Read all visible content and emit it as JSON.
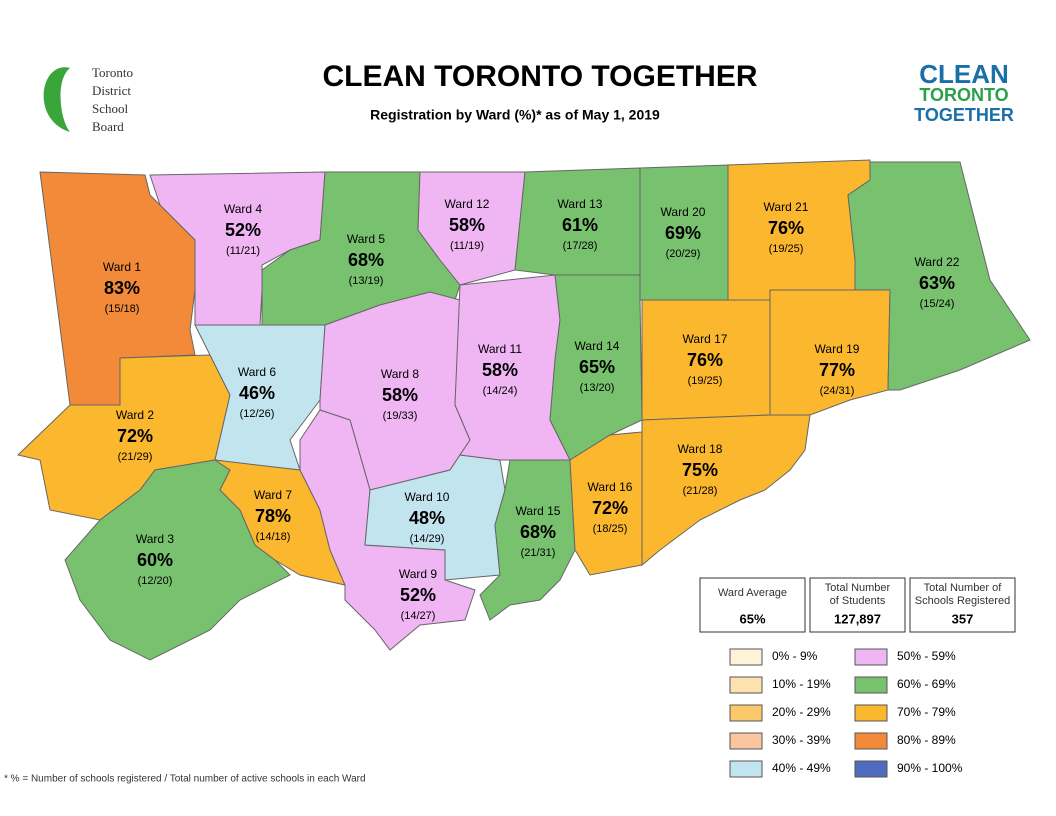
{
  "header": {
    "title": "CLEAN TORONTO TOGETHER",
    "subtitle": "Registration by Ward (%)* as of May 1, 2019",
    "logo_left": [
      "Toronto",
      "District",
      "School",
      "Board"
    ],
    "logo_right": [
      "CLEAN",
      "TORONTO",
      "TOGETHER"
    ]
  },
  "wards": [
    {
      "name": "Ward 1",
      "percent": "83%",
      "fraction": "(15/18)",
      "color": "#f28a3a"
    },
    {
      "name": "Ward 2",
      "percent": "72%",
      "fraction": "(21/29)",
      "color": "#fbb72e"
    },
    {
      "name": "Ward 3",
      "percent": "60%",
      "fraction": "(12/20)",
      "color": "#78c26f"
    },
    {
      "name": "Ward 4",
      "percent": "52%",
      "fraction": "(11/21)",
      "color": "#f0b6f4"
    },
    {
      "name": "Ward 5",
      "percent": "68%",
      "fraction": "(13/19)",
      "color": "#78c26f"
    },
    {
      "name": "Ward 6",
      "percent": "46%",
      "fraction": "(12/26)",
      "color": "#c2e4ef"
    },
    {
      "name": "Ward 7",
      "percent": "78%",
      "fraction": "(14/18)",
      "color": "#fbb72e"
    },
    {
      "name": "Ward 8",
      "percent": "58%",
      "fraction": "(19/33)",
      "color": "#f0b6f4"
    },
    {
      "name": "Ward 9",
      "percent": "52%",
      "fraction": "(14/27)",
      "color": "#f0b6f4"
    },
    {
      "name": "Ward 10",
      "percent": "48%",
      "fraction": "(14/29)",
      "color": "#c2e4ef"
    },
    {
      "name": "Ward 11",
      "percent": "58%",
      "fraction": "(14/24)",
      "color": "#f0b6f4"
    },
    {
      "name": "Ward 12",
      "percent": "58%",
      "fraction": "(11/19)",
      "color": "#f0b6f4"
    },
    {
      "name": "Ward 13",
      "percent": "61%",
      "fraction": "(17/28)",
      "color": "#78c26f"
    },
    {
      "name": "Ward 14",
      "percent": "65%",
      "fraction": "(13/20)",
      "color": "#78c26f"
    },
    {
      "name": "Ward 15",
      "percent": "68%",
      "fraction": "(21/31)",
      "color": "#78c26f"
    },
    {
      "name": "Ward 16",
      "percent": "72%",
      "fraction": "(18/25)",
      "color": "#fbb72e"
    },
    {
      "name": "Ward 17",
      "percent": "76%",
      "fraction": "(19/25)",
      "color": "#fbb72e"
    },
    {
      "name": "Ward 18",
      "percent": "75%",
      "fraction": "(21/28)",
      "color": "#fbb72e"
    },
    {
      "name": "Ward 19",
      "percent": "77%",
      "fraction": "(24/31)",
      "color": "#fbb72e"
    },
    {
      "name": "Ward 20",
      "percent": "69%",
      "fraction": "(20/29)",
      "color": "#78c26f"
    },
    {
      "name": "Ward 21",
      "percent": "76%",
      "fraction": "(19/25)",
      "color": "#fbb72e"
    },
    {
      "name": "Ward 22",
      "percent": "63%",
      "fraction": "(15/24)",
      "color": "#78c26f"
    }
  ],
  "summary": [
    {
      "label": [
        "Ward Average"
      ],
      "value": "65%"
    },
    {
      "label": [
        "Total Number",
        "of Students"
      ],
      "value": "127,897"
    },
    {
      "label": [
        "Total Number of",
        "Schools Registered"
      ],
      "value": "357"
    }
  ],
  "legend": [
    {
      "label": "0% - 9%",
      "color": "#fdf3d7"
    },
    {
      "label": "10% - 19%",
      "color": "#fde2b0"
    },
    {
      "label": "20% - 29%",
      "color": "#f9c96b"
    },
    {
      "label": "30% - 39%",
      "color": "#f9c6a0"
    },
    {
      "label": "40% - 49%",
      "color": "#c2e4ef"
    },
    {
      "label": "50% - 59%",
      "color": "#f0b6f4"
    },
    {
      "label": "60% - 69%",
      "color": "#78c26f"
    },
    {
      "label": "70% - 79%",
      "color": "#fbb72e"
    },
    {
      "label": "80% - 89%",
      "color": "#f28a3a"
    },
    {
      "label": "90% - 100%",
      "color": "#4f6bbf"
    }
  ],
  "footnote": "* % = Number of schools registered / Total number of active schools in each Ward"
}
